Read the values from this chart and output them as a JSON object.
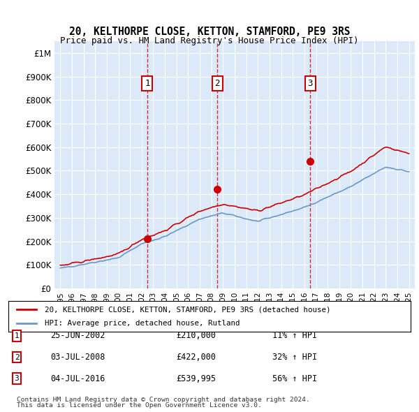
{
  "title1": "20, KELTHORPE CLOSE, KETTON, STAMFORD, PE9 3RS",
  "title2": "Price paid vs. HM Land Registry's House Price Index (HPI)",
  "red_label": "20, KELTHORPE CLOSE, KETTON, STAMFORD, PE9 3RS (detached house)",
  "blue_label": "HPI: Average price, detached house, Rutland",
  "sale_markers": [
    {
      "num": 1,
      "date": "25-JUN-2002",
      "price": "£210,000",
      "pct": "11% ↑ HPI",
      "x_year": 2002.48,
      "y_val": 210000
    },
    {
      "num": 2,
      "date": "03-JUL-2008",
      "price": "£422,000",
      "pct": "32% ↑ HPI",
      "x_year": 2008.5,
      "y_val": 422000
    },
    {
      "num": 3,
      "date": "04-JUL-2016",
      "price": "£539,995",
      "pct": "56% ↑ HPI",
      "x_year": 2016.5,
      "y_val": 539995
    }
  ],
  "footer1": "Contains HM Land Registry data © Crown copyright and database right 2024.",
  "footer2": "This data is licensed under the Open Government Licence v3.0.",
  "background_color": "#dce9f8",
  "plot_bg": "#dce9f8",
  "red_color": "#cc0000",
  "blue_color": "#6699cc",
  "ylim": [
    0,
    1050000
  ],
  "xlim_start": 1994.5,
  "xlim_end": 2025.5
}
